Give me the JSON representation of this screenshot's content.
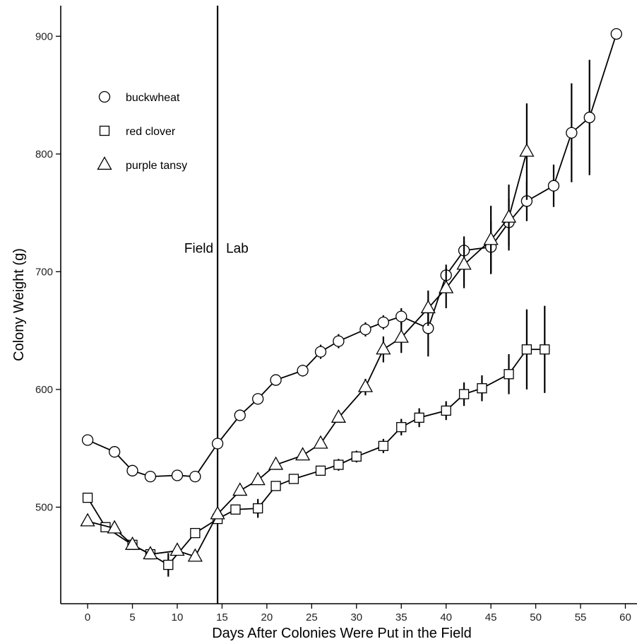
{
  "chart_data": {
    "type": "line",
    "xlabel": "Days After Colonies Were Put in the Field",
    "ylabel": "Colony Weight (g)",
    "xlim": [
      -3,
      61.3
    ],
    "ylim": [
      418,
      926
    ],
    "xticks": [
      0,
      5,
      10,
      15,
      20,
      25,
      30,
      35,
      40,
      45,
      50,
      55,
      60
    ],
    "yticks": [
      500,
      600,
      700,
      800,
      900
    ],
    "grid": false,
    "legend_position": "top-left",
    "divider": {
      "x": 14.5,
      "left_label": "Field",
      "right_label": "Lab"
    },
    "series": [
      {
        "name": "buckwheat",
        "marker": "circle",
        "x": [
          0,
          3,
          5,
          7,
          10,
          12,
          14.5,
          17,
          19,
          21,
          24,
          26,
          28,
          31,
          33,
          35,
          38,
          40,
          42,
          45,
          47,
          49,
          52,
          54,
          56,
          59
        ],
        "y": [
          557,
          547,
          531,
          526,
          527,
          526,
          554,
          578,
          592,
          608,
          616,
          632,
          641,
          651,
          657,
          662,
          652,
          697,
          718,
          721,
          742,
          760,
          773,
          818,
          831,
          902
        ],
        "err": [
          0,
          0,
          0,
          0,
          0,
          0,
          0,
          0,
          0,
          4,
          5,
          6,
          6,
          6,
          6,
          7,
          24,
          9,
          12,
          22,
          20,
          17,
          18,
          42,
          49,
          0
        ]
      },
      {
        "name": "red clover",
        "marker": "square",
        "x": [
          0,
          2,
          5,
          7,
          9,
          12,
          14.5,
          16.5,
          19,
          21,
          23,
          26,
          28,
          30,
          33,
          35,
          37,
          40,
          42,
          44,
          47,
          49,
          51
        ],
        "y": [
          508,
          483,
          468,
          460,
          451,
          478,
          490,
          498,
          499,
          518,
          524,
          531,
          536,
          543,
          552,
          568,
          576,
          582,
          596,
          601,
          613,
          634,
          634
        ],
        "err": [
          0,
          0,
          0,
          0,
          10,
          0,
          0,
          0,
          8,
          0,
          0,
          4,
          5,
          5,
          6,
          7,
          8,
          8,
          10,
          11,
          17,
          34,
          37
        ]
      },
      {
        "name": "purple tansy",
        "marker": "triangle",
        "x": [
          0,
          3,
          5,
          7,
          10,
          12,
          14.5,
          17,
          19,
          21,
          24,
          26,
          28,
          31,
          33,
          35,
          38,
          40,
          42,
          45,
          47,
          49
        ],
        "y": [
          488,
          482,
          468,
          460,
          463,
          458,
          494,
          514,
          523,
          536,
          544,
          554,
          576,
          602,
          634,
          644,
          669,
          686,
          706,
          727,
          746,
          802
        ],
        "err": [
          0,
          0,
          0,
          0,
          0,
          0,
          0,
          0,
          0,
          0,
          0,
          0,
          0,
          7,
          11,
          13,
          15,
          17,
          20,
          29,
          28,
          41
        ]
      }
    ]
  }
}
